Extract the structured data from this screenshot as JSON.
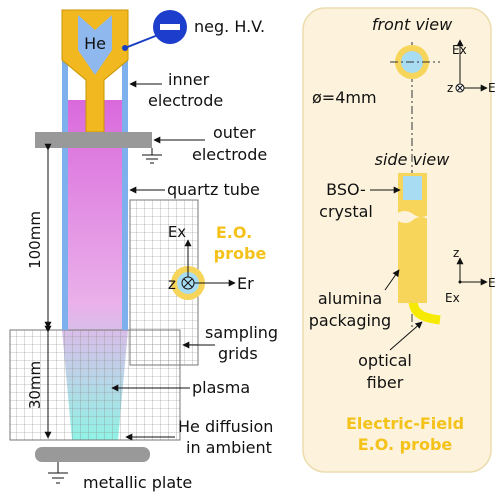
{
  "left": {
    "gas": "He",
    "voltage": "neg. H.V.",
    "inner_electrode": [
      "inner",
      "electrode"
    ],
    "outer_electrode": [
      "outer",
      "electrode"
    ],
    "tube": "quartz tube",
    "length_total": "100mm",
    "length_grid": "30mm",
    "probe": [
      "E.O.",
      "probe"
    ],
    "probe_axes": {
      "ex": "Ex",
      "z": "z",
      "er": "Er"
    },
    "grids": [
      "sampling",
      "grids"
    ],
    "plasma": "plasma",
    "diffusion": [
      "He diffusion",
      "in ambient"
    ],
    "plate": "metallic plate"
  },
  "right": {
    "front_view": "front view",
    "front_axes": {
      "ex": "Ex",
      "z": "z",
      "er": "Er"
    },
    "diameter": "ø=4mm",
    "side_view": "side view",
    "side_axes": {
      "z": "z",
      "ex": "Ex",
      "er": "Er"
    },
    "crystal": [
      "BSO-",
      "crystal"
    ],
    "packaging": [
      "alumina",
      "packaging"
    ],
    "fiber": [
      "optical",
      "fiber"
    ],
    "title": [
      "Electric-Field",
      "E.O. probe"
    ]
  }
}
